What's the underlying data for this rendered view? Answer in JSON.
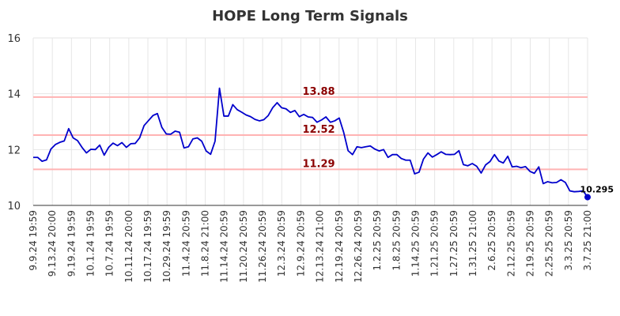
{
  "chart_data": {
    "type": "line",
    "title": "HOPE Long Term Signals",
    "xlabel": "",
    "ylabel": "",
    "ylim": [
      10,
      16
    ],
    "yticks": [
      "10",
      "12",
      "14",
      "16"
    ],
    "grid": true,
    "xticklabels": [
      "9.9.24 19:59",
      "9.13.24 20:00",
      "9.19.24 19:59",
      "10.1.24 19:59",
      "10.7.24 19:59",
      "10.11.24 20:00",
      "10.17.24 19:59",
      "10.29.24 19:59",
      "11.4.24 20:59",
      "11.8.24 21:00",
      "11.14.24 20:59",
      "11.20.24 20:59",
      "11.26.24 20:59",
      "12.3.24 20:59",
      "12.9.24 20:59",
      "12.13.24 21:00",
      "12.19.24 20:59",
      "12.26.24 20:59",
      "1.2.25 20:59",
      "1.8.25 20:59",
      "1.14.25 20:59",
      "1.21.25 20:59",
      "1.27.25 20:59",
      "1.31.25 21:00",
      "2.6.25 20:59",
      "2.12.25 20:59",
      "2.19.25 20:59",
      "2.25.25 20:59",
      "3.3.25 20:59",
      "3.7.25 21:00"
    ],
    "reference_lines": [
      {
        "value": 13.88,
        "label": "13.88",
        "color": "#ffb3b3"
      },
      {
        "value": 12.52,
        "label": "12.52",
        "color": "#ffb3b3"
      },
      {
        "value": 11.29,
        "label": "11.29",
        "color": "#ffb3b3"
      }
    ],
    "series_color": "#0000cc",
    "last_value_label": "10.295",
    "values": [
      11.72,
      11.72,
      11.58,
      11.63,
      12.02,
      12.18,
      12.26,
      12.31,
      12.75,
      12.42,
      12.32,
      12.08,
      11.88,
      12.01,
      12.0,
      12.16,
      11.8,
      12.08,
      12.23,
      12.14,
      12.25,
      12.08,
      12.21,
      12.22,
      12.42,
      12.86,
      13.04,
      13.22,
      13.29,
      12.8,
      12.56,
      12.55,
      12.66,
      12.62,
      12.06,
      12.1,
      12.38,
      12.42,
      12.3,
      11.95,
      11.83,
      12.3,
      14.2,
      13.2,
      13.2,
      13.61,
      13.43,
      13.34,
      13.24,
      13.18,
      13.08,
      13.03,
      13.07,
      13.22,
      13.5,
      13.68,
      13.5,
      13.46,
      13.33,
      13.4,
      13.18,
      13.26,
      13.17,
      13.15,
      12.98,
      13.06,
      13.17,
      12.98,
      13.03,
      13.13,
      12.62,
      11.96,
      11.82,
      12.1,
      12.07,
      12.1,
      12.13,
      12.02,
      11.95,
      12.0,
      11.72,
      11.82,
      11.82,
      11.68,
      11.62,
      11.62,
      11.13,
      11.19,
      11.66,
      11.88,
      11.73,
      11.82,
      11.92,
      11.83,
      11.82,
      11.83,
      11.96,
      11.46,
      11.42,
      11.5,
      11.4,
      11.16,
      11.45,
      11.57,
      11.82,
      11.59,
      11.52,
      11.76,
      11.38,
      11.4,
      11.35,
      11.39,
      11.22,
      11.15,
      11.38,
      10.78,
      10.85,
      10.81,
      10.82,
      10.92,
      10.82,
      10.52,
      10.49,
      10.5,
      10.52,
      10.295
    ]
  }
}
